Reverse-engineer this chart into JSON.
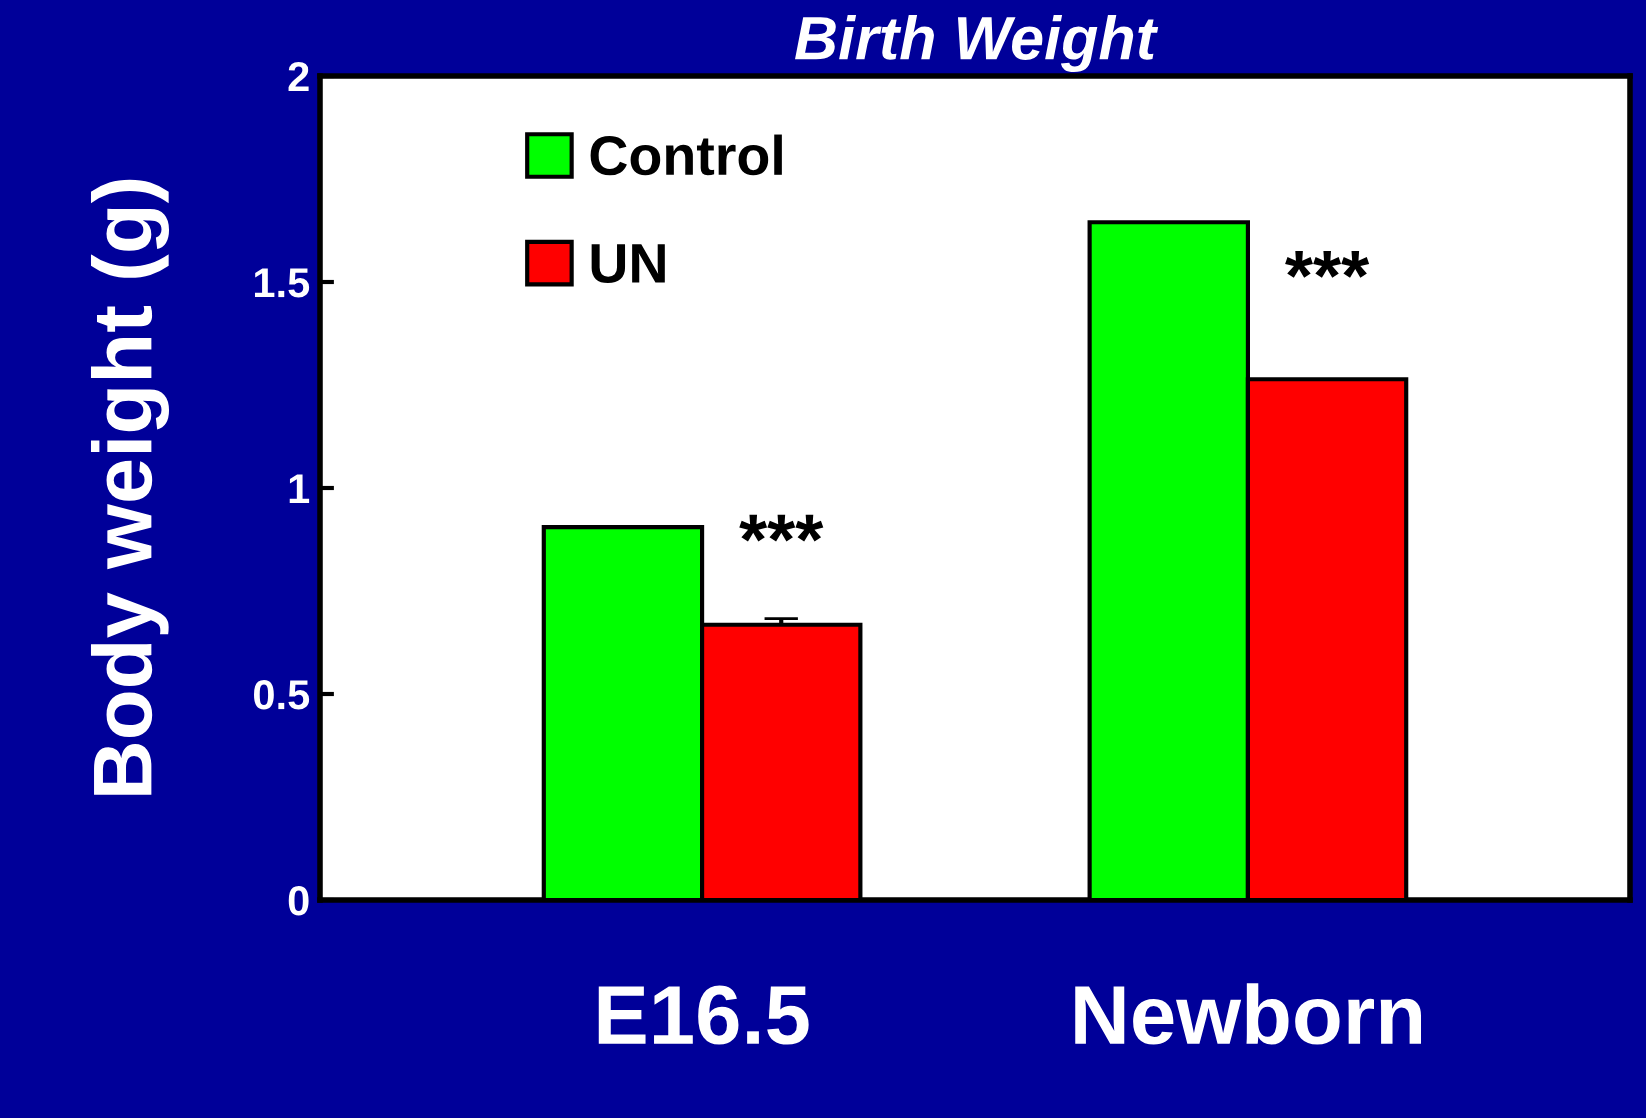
{
  "chart_data": {
    "type": "bar",
    "title": "Birth Weight",
    "ylabel": "Body weight (g)",
    "categories": [
      "E16.5",
      "Newborn"
    ],
    "series": [
      {
        "name": "Control",
        "color": "#00ff00",
        "values": [
          0.905,
          1.645
        ]
      },
      {
        "name": "UN",
        "color": "#ff0000",
        "values": [
          0.668,
          1.264
        ],
        "errors": [
          0.015,
          null
        ]
      }
    ],
    "ylim": [
      0,
      2
    ],
    "yticks": [
      0,
      {
        "value": 0.5,
        "label": "0.5"
      },
      1,
      {
        "value": 1.5,
        "label": "1.5"
      },
      2
    ],
    "grid": false,
    "legend": "top left",
    "annotations": [
      {
        "text": "***",
        "x": "E16.5",
        "y": 0.86
      },
      {
        "text": "***",
        "x": "Newborn",
        "y": 1.5
      }
    ]
  }
}
